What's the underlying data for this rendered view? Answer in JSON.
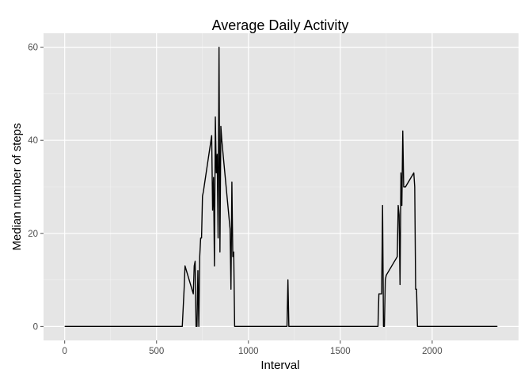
{
  "chart_data": {
    "type": "line",
    "title": "Average Daily Activity",
    "xlabel": "Interval",
    "ylabel": "Median number of steps",
    "xlim": [
      -115,
      2470
    ],
    "ylim": [
      -3,
      63
    ],
    "x_ticks": [
      0,
      500,
      1000,
      1500,
      2000
    ],
    "x_tick_labels": [
      "0",
      "500",
      "1000",
      "1500",
      "2000"
    ],
    "y_ticks": [
      0,
      20,
      40,
      60
    ],
    "y_tick_labels": [
      "0",
      "20",
      "40",
      "60"
    ],
    "grid": true,
    "panel_color": "#e5e5e5",
    "grid_color": "#ffffff",
    "line_color": "#000000",
    "series": [
      {
        "x": [
          0,
          640,
          650,
          655,
          700,
          705,
          710,
          715,
          720,
          725,
          730,
          735,
          740,
          745,
          750,
          755,
          800,
          805,
          810,
          815,
          820,
          825,
          830,
          835,
          840,
          845,
          850,
          855,
          900,
          905,
          910,
          915,
          920,
          925,
          1210,
          1215,
          1220,
          1225,
          1705,
          1710,
          1715,
          1720,
          1725,
          1730,
          1735,
          1740,
          1745,
          1750,
          1810,
          1815,
          1820,
          1825,
          1830,
          1835,
          1840,
          1845,
          1850,
          1855,
          1900,
          1905,
          1910,
          1915,
          1920,
          1925,
          2355
        ],
        "y": [
          0,
          0,
          8,
          13,
          7,
          13,
          14,
          0,
          0,
          12,
          0,
          15,
          19,
          19,
          28,
          29,
          41,
          25,
          32,
          13,
          45,
          33,
          37,
          19,
          60,
          16,
          43,
          40,
          21,
          8,
          31,
          15,
          16,
          0,
          0,
          10,
          0,
          0,
          0,
          7,
          7,
          7,
          7,
          26,
          0,
          0,
          10,
          11,
          15,
          26,
          24,
          9,
          33,
          26,
          42,
          30,
          30,
          30,
          33,
          30,
          8,
          8,
          0,
          0,
          0
        ]
      }
    ]
  }
}
